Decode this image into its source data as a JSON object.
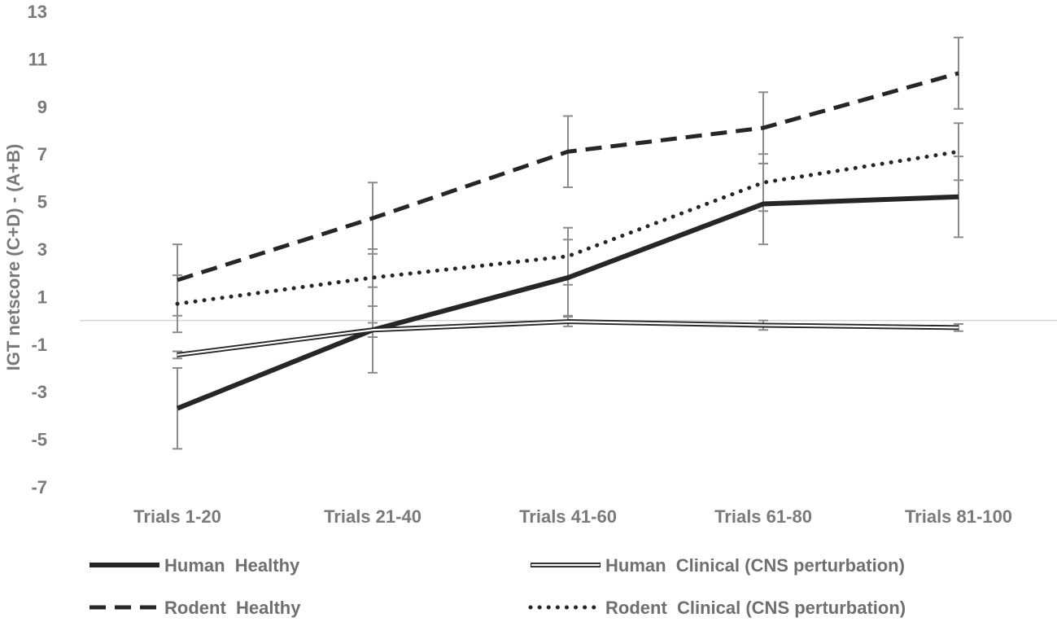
{
  "chart_data": {
    "type": "line",
    "title": "",
    "xlabel": "",
    "ylabel": "IGT netscore (C+D) - (A+B)",
    "ylim": [
      -7,
      13
    ],
    "yticks": [
      -7,
      -5,
      -3,
      -1,
      1,
      3,
      5,
      7,
      9,
      11,
      13
    ],
    "ytick_labels": [
      "-7",
      "-5",
      "-3",
      "-1",
      "1",
      "3",
      "5",
      "7",
      "9",
      "11",
      "13"
    ],
    "reference_line": 0,
    "grid": false,
    "legend_position": "bottom",
    "categories": [
      "Trials 1-20",
      "Trials 21-40",
      "Trials 41-60",
      "Trials 61-80",
      "Trials 81-100"
    ],
    "series": [
      {
        "name": "Human  Healthy",
        "style": "solid-thick",
        "color": "#262626",
        "values": [
          -3.7,
          -0.4,
          1.8,
          4.9,
          5.2
        ],
        "error": [
          1.7,
          1.8,
          1.6,
          1.7,
          1.7
        ]
      },
      {
        "name": "Human  Clinical (CNS perturbation)",
        "style": "double-line",
        "color": "#262626",
        "values": [
          -1.45,
          -0.4,
          -0.05,
          -0.2,
          -0.3
        ],
        "error": [
          0.15,
          0.3,
          0.2,
          0.2,
          0.15
        ]
      },
      {
        "name": "Rodent  Healthy",
        "style": "dashed",
        "color": "#262626",
        "values": [
          1.7,
          4.3,
          7.1,
          8.1,
          10.4
        ],
        "error": [
          1.5,
          1.5,
          1.5,
          1.5,
          1.5
        ]
      },
      {
        "name": "Rodent  Clinical (CNS perturbation)",
        "style": "dotted",
        "color": "#262626",
        "values": [
          0.7,
          1.8,
          2.7,
          5.8,
          7.1
        ],
        "error": [
          1.2,
          1.2,
          1.2,
          1.2,
          1.2
        ]
      }
    ]
  }
}
